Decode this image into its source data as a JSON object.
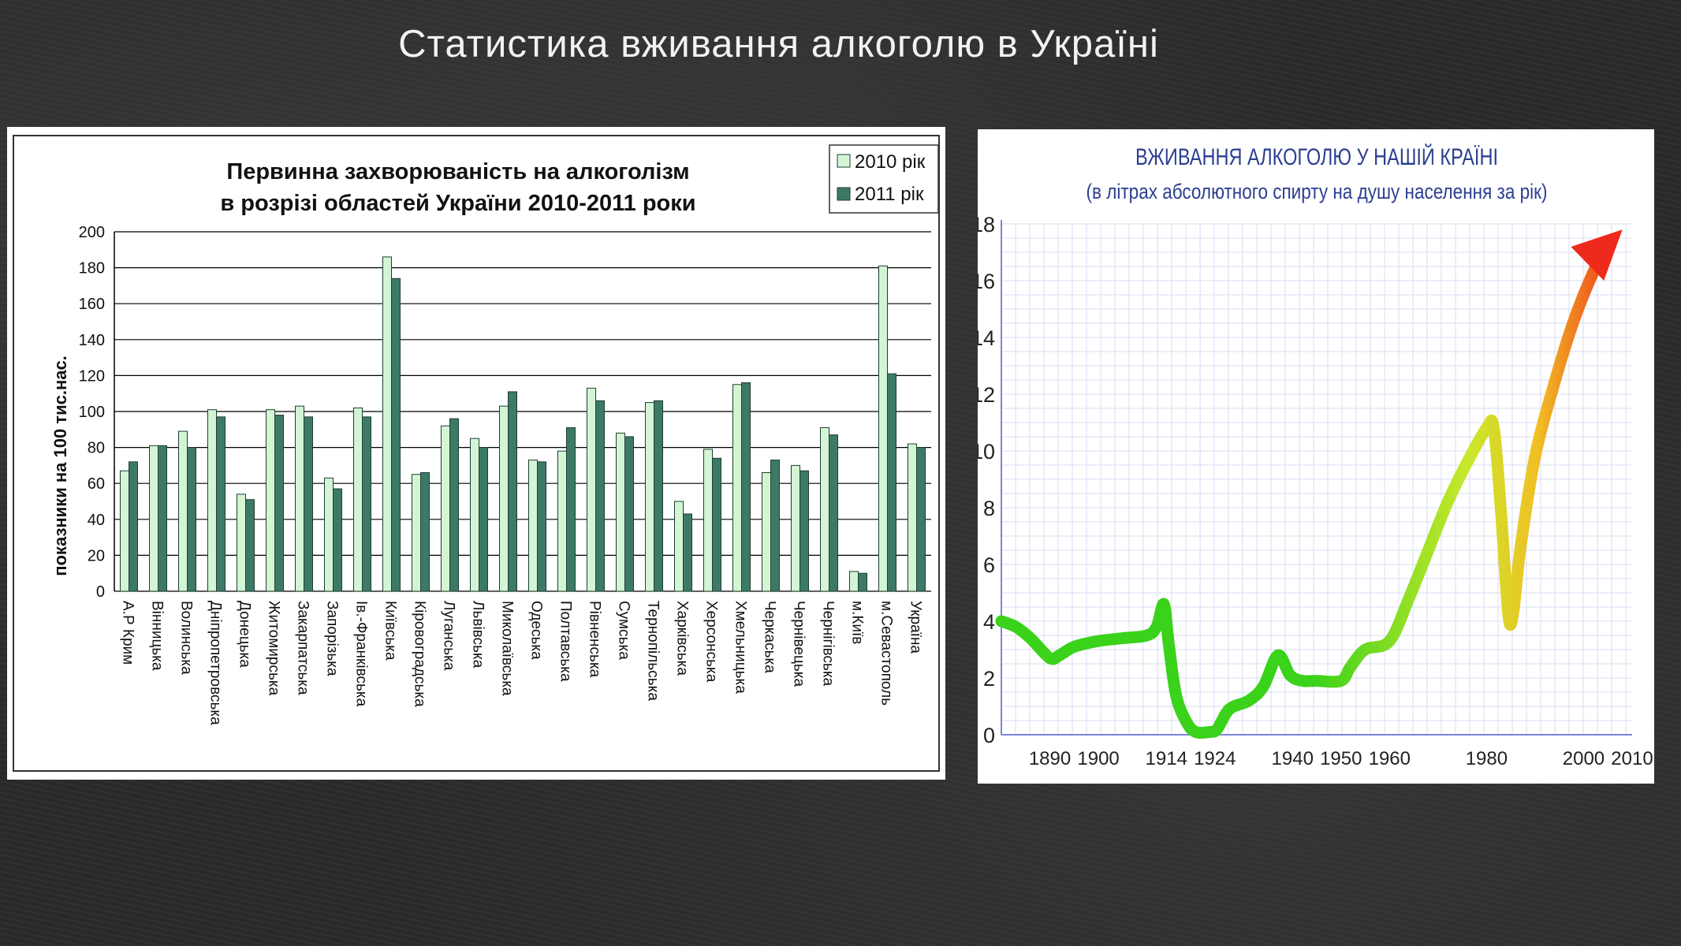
{
  "slide": {
    "title": "Статистика вживання алкоголю в Україні"
  },
  "colors": {
    "series_2010": "#d4f5d4",
    "series_2011": "#3d7a66",
    "bar_stroke": "#1d3d33",
    "grid": "#000000",
    "right_title": "#2b3f8f",
    "right_grid": "#d8dcf0",
    "right_axis": "#7a86d8",
    "curve_start": "#3ad21a",
    "curve_mid": "#c8e82c",
    "curve_end": "#ee2a1c"
  },
  "chart_data": [
    {
      "type": "bar",
      "title": "Первинна захворюваність на алкоголізм",
      "subtitle": "в розрізі областей України 2010-2011 роки",
      "ylabel": "показники на 100 тис.нас.",
      "ylim": [
        0,
        200
      ],
      "yticks": [
        "0",
        "20",
        "40",
        "60",
        "80",
        "100",
        "120",
        "140",
        "160",
        "180",
        "200"
      ],
      "grid": true,
      "legend_position": "top-right",
      "categories": [
        "А.Р Крим",
        "Вінницька",
        "Волинська",
        "Дніпропетровська",
        "Донецька",
        "Житомирська",
        "Закарпатська",
        "Запорізька",
        "Ів.-Франківська",
        "Київська",
        "Кіровоградська",
        "Луганська",
        "Львівська",
        "Миколаївська",
        "Одеська",
        "Полтавська",
        "Рівненська",
        "Сумська",
        "Тернопільська",
        "Харківська",
        "Херсонська",
        "Хмельницька",
        "Черкаська",
        "Чернівецька",
        "Чернігівська",
        "м.Київ",
        "м.Севастополь",
        "Україна"
      ],
      "series": [
        {
          "name": "2010 рік",
          "values": [
            67,
            81,
            89,
            101,
            54,
            101,
            103,
            63,
            102,
            186,
            65,
            92,
            85,
            103,
            73,
            78,
            113,
            88,
            105,
            50,
            79,
            115,
            66,
            70,
            91,
            11,
            181,
            82
          ]
        },
        {
          "name": "2011 рік",
          "values": [
            72,
            81,
            80,
            97,
            51,
            98,
            97,
            57,
            97,
            174,
            66,
            96,
            80,
            111,
            72,
            91,
            106,
            86,
            106,
            43,
            74,
            116,
            73,
            67,
            87,
            10,
            121,
            80
          ]
        }
      ]
    },
    {
      "type": "line",
      "title": "ВЖИВАННЯ АЛКОГОЛЮ У НАШІЙ КРАЇНІ",
      "subtitle": "(в літрах абсолютного спирту на душу населення за рік)",
      "ylim": [
        0,
        18
      ],
      "xlim": [
        1880,
        2010
      ],
      "yticks": [
        "0",
        "2",
        "4",
        "6",
        "8",
        "10",
        "12",
        "14",
        "16",
        "18"
      ],
      "xticks": [
        "1890",
        "1900",
        "1914",
        "1924",
        "1940",
        "1950",
        "1960",
        "1980",
        "2000",
        "2010"
      ],
      "grid": true,
      "x": [
        1880,
        1883,
        1886,
        1890,
        1892,
        1895,
        1900,
        1905,
        1910,
        1912,
        1913.5,
        1914.5,
        1916,
        1918,
        1920,
        1923,
        1924.5,
        1927,
        1931,
        1934,
        1937,
        1939.5,
        1942,
        1945,
        1950,
        1952,
        1955,
        1960,
        1964,
        1968,
        1972,
        1976,
        1980,
        1981.5,
        1983,
        1984.5,
        1985.5,
        1987,
        1990,
        1994,
        1998,
        2002,
        2005,
        2008
      ],
      "y": [
        4.0,
        3.8,
        3.4,
        2.7,
        2.8,
        3.1,
        3.3,
        3.4,
        3.5,
        3.8,
        4.6,
        3.2,
        1.4,
        0.5,
        0.1,
        0.1,
        0.2,
        0.9,
        1.2,
        1.7,
        2.8,
        2.1,
        1.9,
        1.9,
        1.9,
        2.4,
        3.0,
        3.3,
        4.8,
        6.5,
        8.2,
        9.6,
        10.8,
        10.8,
        7.8,
        4.2,
        4.3,
        6.6,
        9.8,
        12.4,
        14.6,
        16.3,
        17.3,
        17.8
      ]
    }
  ]
}
